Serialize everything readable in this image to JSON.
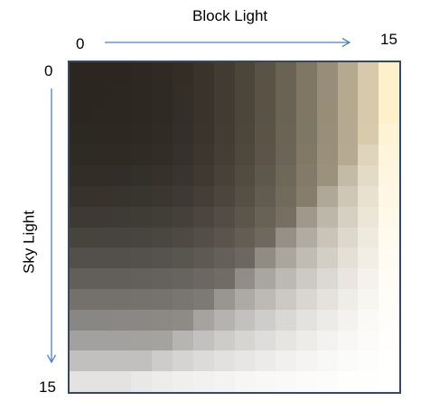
{
  "block_axis": {
    "title": "Block Light",
    "min_label": "0",
    "max_label": "15"
  },
  "sky_axis": {
    "title": "Sky Light",
    "min_label": "0",
    "max_label": "15"
  },
  "colors": {
    "frame": "#36495e",
    "arrow": "#4f81bd",
    "dark_base": "#2b2620",
    "block_tint": "#fff0cc",
    "sky_tint": "#f8f8f8"
  },
  "grid": {
    "size": 16
  }
}
